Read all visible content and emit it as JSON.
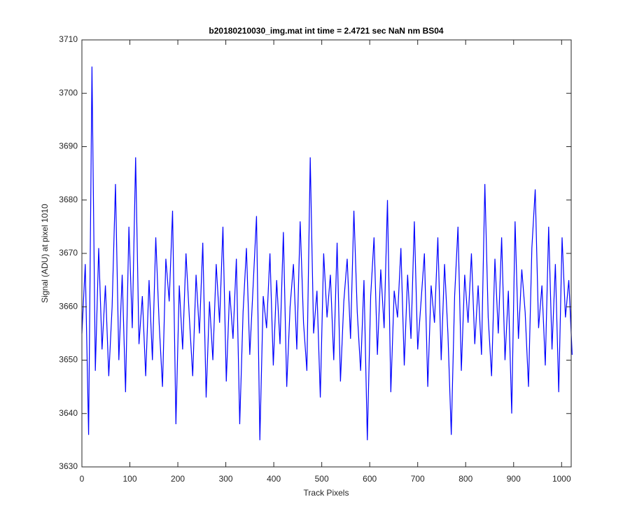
{
  "chart_data": {
    "type": "line",
    "title": "b20180210030_img.mat int time = 2.4721 sec  NaN nm BS04",
    "xlabel": "Track Pixels",
    "ylabel": "Signal (ADU) at pixel 1010",
    "x": [
      0,
      7,
      14,
      21,
      28,
      35,
      42,
      49,
      56,
      63,
      70,
      77,
      84,
      91,
      98,
      105,
      112,
      119,
      126,
      133,
      140,
      147,
      154,
      161,
      168,
      175,
      182,
      189,
      196,
      203,
      210,
      217,
      224,
      231,
      238,
      245,
      252,
      259,
      266,
      273,
      280,
      287,
      294,
      301,
      308,
      315,
      322,
      329,
      336,
      343,
      350,
      357,
      364,
      371,
      378,
      385,
      392,
      399,
      406,
      413,
      420,
      427,
      434,
      441,
      448,
      455,
      462,
      469,
      476,
      483,
      490,
      497,
      504,
      511,
      518,
      525,
      532,
      539,
      546,
      553,
      560,
      567,
      574,
      581,
      588,
      595,
      602,
      609,
      616,
      623,
      630,
      637,
      644,
      651,
      658,
      665,
      672,
      679,
      686,
      693,
      700,
      707,
      714,
      721,
      728,
      735,
      742,
      749,
      756,
      763,
      770,
      777,
      784,
      791,
      798,
      805,
      812,
      819,
      826,
      833,
      840,
      847,
      854,
      861,
      868,
      875,
      882,
      889,
      896,
      903,
      910,
      917,
      924,
      931,
      938,
      945,
      952,
      959,
      966,
      973,
      980,
      987,
      994,
      1001,
      1008,
      1015,
      1022
    ],
    "series": [
      {
        "name": "signal",
        "color": "#0000ff",
        "values": [
          3655,
          3668,
          3636,
          3705,
          3648,
          3671,
          3652,
          3664,
          3647,
          3660,
          3683,
          3650,
          3666,
          3644,
          3675,
          3656,
          3688,
          3653,
          3662,
          3647,
          3665,
          3650,
          3673,
          3657,
          3645,
          3669,
          3661,
          3678,
          3638,
          3664,
          3652,
          3670,
          3658,
          3647,
          3666,
          3655,
          3672,
          3643,
          3661,
          3650,
          3668,
          3657,
          3675,
          3646,
          3663,
          3654,
          3669,
          3638,
          3659,
          3671,
          3651,
          3664,
          3677,
          3635,
          3662,
          3656,
          3670,
          3649,
          3665,
          3653,
          3674,
          3645,
          3660,
          3668,
          3652,
          3676,
          3657,
          3648,
          3688,
          3655,
          3663,
          3643,
          3670,
          3658,
          3666,
          3650,
          3672,
          3646,
          3661,
          3669,
          3654,
          3678,
          3659,
          3648,
          3665,
          3635,
          3662,
          3673,
          3651,
          3667,
          3656,
          3680,
          3644,
          3663,
          3658,
          3671,
          3649,
          3666,
          3654,
          3676,
          3652,
          3661,
          3670,
          3645,
          3664,
          3657,
          3673,
          3650,
          3668,
          3655,
          3636,
          3662,
          3675,
          3648,
          3666,
          3657,
          3670,
          3653,
          3664,
          3651,
          3683,
          3658,
          3647,
          3669,
          3655,
          3673,
          3650,
          3663,
          3640,
          3676,
          3654,
          3667,
          3659,
          3645,
          3671,
          3682,
          3656,
          3664,
          3649,
          3675,
          3652,
          3668,
          3644,
          3673,
          3658,
          3665,
          3651
        ]
      }
    ],
    "xlim": [
      0,
      1020
    ],
    "xticks": [
      0,
      100,
      200,
      300,
      400,
      500,
      600,
      700,
      800,
      900,
      1000
    ],
    "ylim": [
      3630,
      3710
    ],
    "yticks": [
      3630,
      3640,
      3650,
      3660,
      3670,
      3680,
      3690,
      3700,
      3710
    ]
  }
}
